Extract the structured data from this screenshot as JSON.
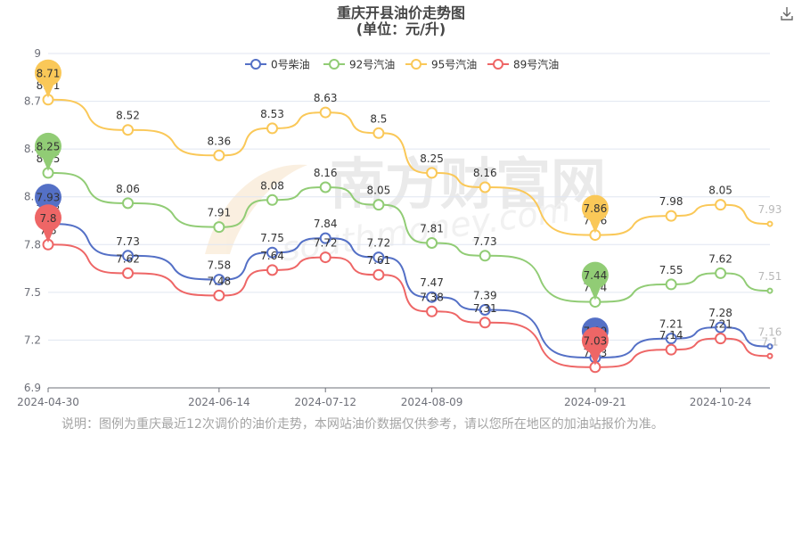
{
  "chart_data": {
    "type": "line",
    "title": "重庆开县油价走势图",
    "subtitle": "(单位：元/升)",
    "xlabel": "",
    "ylabel": "",
    "ylim": [
      6.9,
      9
    ],
    "yticks": [
      "6.9",
      "7.2",
      "7.5",
      "7.8",
      "8.1",
      "8.4",
      "8.7",
      "9"
    ],
    "x": [
      "2024-04-30",
      "2024-05-21",
      "2024-06-14",
      "2024-06-28",
      "2024-07-12",
      "2024-07-26",
      "2024-08-09",
      "2024-08-23",
      "2024-09-21",
      "2024-10-11",
      "2024-10-24",
      "2024-11-06"
    ],
    "xtick_labels": [
      "2024-04-30",
      "2024-06-14",
      "2024-07-12",
      "2024-08-09",
      "2024-09-21",
      "2024-10-24"
    ],
    "grid": true,
    "legend_position": "top",
    "series": [
      {
        "name": "0号柴油",
        "color": "#5470c6",
        "values": [
          7.93,
          7.73,
          7.58,
          7.75,
          7.84,
          7.72,
          7.47,
          7.39,
          7.09,
          7.21,
          7.28,
          7.16
        ]
      },
      {
        "name": "92号汽油",
        "color": "#91cc75",
        "values": [
          8.25,
          8.06,
          7.91,
          8.08,
          8.16,
          8.05,
          7.81,
          7.73,
          7.44,
          7.55,
          7.62,
          7.51
        ]
      },
      {
        "name": "95号汽油",
        "color": "#fac858",
        "values": [
          8.71,
          8.52,
          8.36,
          8.53,
          8.63,
          8.5,
          8.25,
          8.16,
          7.86,
          7.98,
          8.05,
          7.93
        ]
      },
      {
        "name": "89号汽油",
        "color": "#ee6666",
        "values": [
          7.8,
          7.62,
          7.48,
          7.64,
          7.72,
          7.61,
          7.38,
          7.31,
          7.03,
          7.14,
          7.21,
          7.1
        ]
      }
    ],
    "pins": [
      {
        "series": 2,
        "index": 0,
        "label": "8.71"
      },
      {
        "series": 1,
        "index": 0,
        "label": "8.25"
      },
      {
        "series": 0,
        "index": 0,
        "label": "7.93"
      },
      {
        "series": 3,
        "index": 0,
        "label": "7.8"
      },
      {
        "series": 2,
        "index": 8,
        "label": "7.86"
      },
      {
        "series": 1,
        "index": 8,
        "label": "7.44"
      },
      {
        "series": 0,
        "index": 8,
        "label": "7.09"
      },
      {
        "series": 3,
        "index": 8,
        "label": "7.03"
      }
    ]
  },
  "watermark": {
    "text": "南方财富网",
    "latin": "southmoney.com"
  },
  "toolbar": {
    "download_icon": "download-icon"
  },
  "note": "说明：图例为重庆最近12次调价的油价走势，本网站油价数据仅供参考，请以您所在地区的加油站报价为准。"
}
